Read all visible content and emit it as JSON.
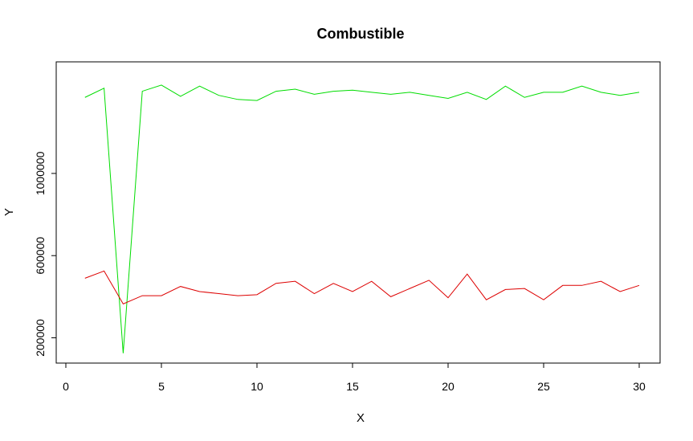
{
  "chart_data": {
    "type": "line",
    "title": "Combustible",
    "xlabel": "X",
    "ylabel": "Y",
    "xlim": [
      0,
      31
    ],
    "ylim": [
      120000,
      1500000
    ],
    "x_ticks": [
      0,
      5,
      10,
      15,
      20,
      25,
      30
    ],
    "y_ticks": [
      200000,
      600000,
      1000000
    ],
    "grid": false,
    "legend": "none",
    "x": [
      1,
      2,
      3,
      4,
      5,
      6,
      7,
      8,
      9,
      10,
      11,
      12,
      13,
      14,
      15,
      16,
      17,
      18,
      19,
      20,
      21,
      22,
      23,
      24,
      25,
      26,
      27,
      28,
      29,
      30
    ],
    "series": [
      {
        "color": "#00dd00",
        "values": [
          1370000,
          1415000,
          125000,
          1400000,
          1430000,
          1375000,
          1425000,
          1380000,
          1360000,
          1355000,
          1400000,
          1410000,
          1385000,
          1400000,
          1405000,
          1395000,
          1385000,
          1395000,
          1380000,
          1365000,
          1395000,
          1360000,
          1425000,
          1370000,
          1395000,
          1395000,
          1425000,
          1395000,
          1380000,
          1395000
        ],
        "name": ""
      },
      {
        "color": "#dd0000",
        "values": [
          490000,
          525000,
          365000,
          405000,
          405000,
          450000,
          425000,
          415000,
          405000,
          410000,
          465000,
          475000,
          415000,
          465000,
          425000,
          475000,
          400000,
          440000,
          480000,
          395000,
          510000,
          385000,
          435000,
          440000,
          385000,
          455000,
          455000,
          475000,
          425000,
          455000
        ],
        "name": ""
      }
    ]
  }
}
